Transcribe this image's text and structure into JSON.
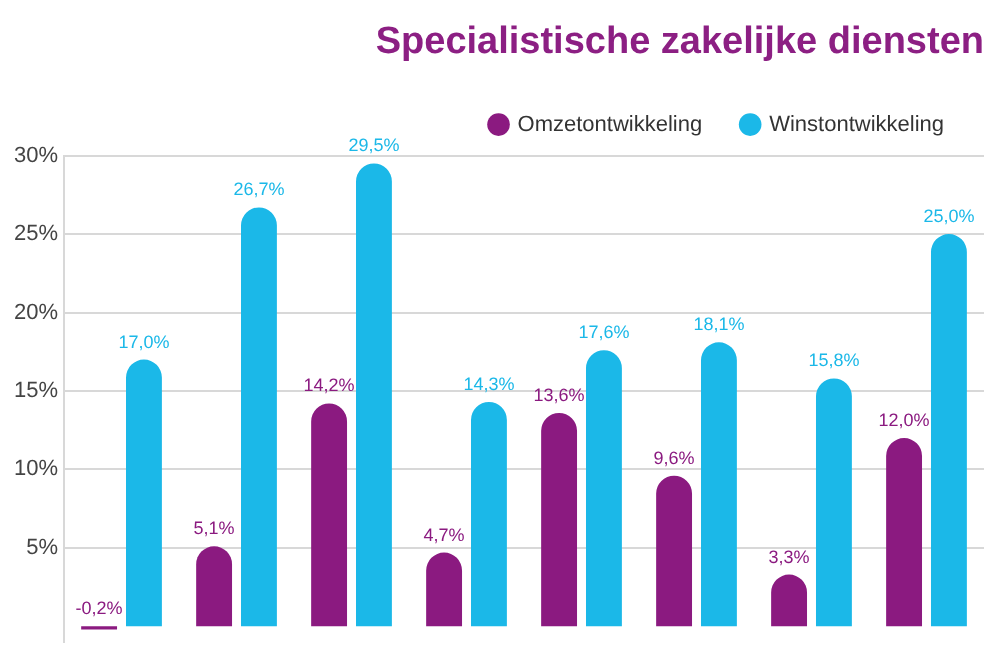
{
  "chart_data": {
    "type": "bar",
    "title": "Specialistische zakelijke diensten",
    "categories": [
      null,
      null,
      null,
      null,
      null,
      null,
      null,
      null
    ],
    "series": [
      {
        "name": "Omzetontwikkeling",
        "color": "#8b1a80",
        "values": [
          -0.2,
          5.1,
          14.2,
          4.7,
          13.6,
          9.6,
          3.3,
          12.0
        ],
        "value_labels": [
          "-0,2%",
          "5,1%",
          "14,2%",
          "4,7%",
          "13,6%",
          "9,6%",
          "3,3%",
          "12,0%"
        ]
      },
      {
        "name": "Winstontwikkeling",
        "color": "#1bb8e8",
        "values": [
          17.0,
          26.7,
          29.5,
          14.3,
          17.6,
          18.1,
          15.8,
          25.0
        ],
        "value_labels": [
          "17,0%",
          "26,7%",
          "29,5%",
          "14,3%",
          "17,6%",
          "18,1%",
          "15,8%",
          "25,0%"
        ]
      }
    ],
    "ylim": [
      -1,
      30
    ],
    "yticks": [
      {
        "value": 5,
        "label": "5%"
      },
      {
        "value": 10,
        "label": "10%"
      },
      {
        "value": 15,
        "label": "15%"
      },
      {
        "value": 20,
        "label": "20%"
      },
      {
        "value": 25,
        "label": "25%"
      },
      {
        "value": 30,
        "label": "30%"
      }
    ],
    "grid": "y",
    "legend": "top right",
    "tick_labels": "y"
  }
}
